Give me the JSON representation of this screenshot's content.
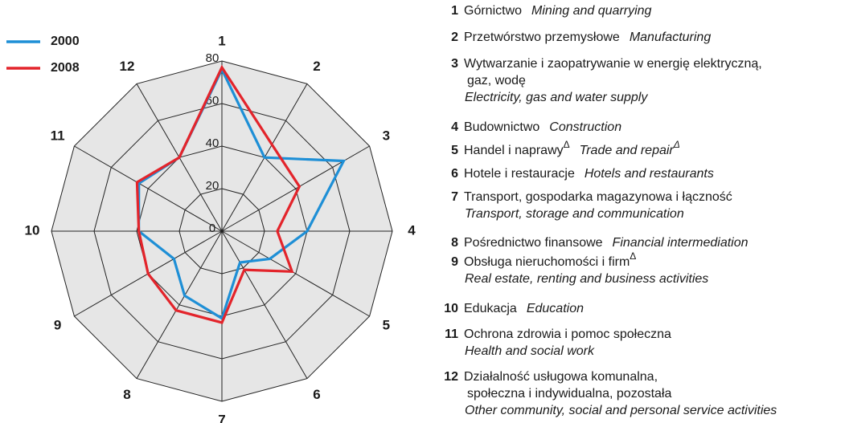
{
  "chart_data": {
    "type": "radar",
    "categories": [
      "1",
      "2",
      "3",
      "4",
      "5",
      "6",
      "7",
      "8",
      "9",
      "10",
      "11",
      "12"
    ],
    "series": [
      {
        "name": "2000",
        "color": "#1e8fd6",
        "values": [
          76,
          40,
          66,
          40,
          26,
          17,
          41,
          35,
          26,
          39,
          45,
          40
        ]
      },
      {
        "name": "2008",
        "color": "#e3242b",
        "values": [
          77,
          47,
          42,
          26,
          38,
          21,
          43,
          43,
          40,
          39,
          46,
          40
        ]
      }
    ],
    "ylim": [
      0,
      80
    ],
    "yticks": [
      0,
      20,
      40,
      60,
      80
    ],
    "grid": true,
    "legend": "upper left",
    "sectors": [
      {
        "number": "1",
        "pl": [
          "Górnictwo"
        ],
        "en": [
          "Mining and quarrying"
        ]
      },
      {
        "number": "2",
        "pl": [
          "Przetwórstwo przemysłowe"
        ],
        "en": [
          "Manufacturing"
        ]
      },
      {
        "number": "3",
        "pl": [
          "Wytwarzanie i zaopatrywanie w energię elektryczną,",
          "gaz, wodę"
        ],
        "en": [
          "Electricity, gas and water supply"
        ]
      },
      {
        "number": "4",
        "pl": [
          "Budownictwo"
        ],
        "en": [
          "Construction"
        ]
      },
      {
        "number": "5",
        "pl": [
          "Handel i naprawy"
        ],
        "pl_sup": "Δ",
        "en": [
          "Trade and repair"
        ],
        "en_sup": "Δ"
      },
      {
        "number": "6",
        "pl": [
          "Hotele i restauracje"
        ],
        "en": [
          "Hotels and restaurants"
        ]
      },
      {
        "number": "7",
        "pl": [
          "Transport, gospodarka magazynowa i łączność"
        ],
        "en": [
          "Transport, storage and communication"
        ]
      },
      {
        "number": "8",
        "pl": [
          "Pośrednictwo finansowe"
        ],
        "en": [
          "Financial intermediation"
        ]
      },
      {
        "number": "9",
        "pl": [
          "Obsługa nieruchomości i firm"
        ],
        "pl_sup": "Δ",
        "en": [
          "Real estate, renting and business activities"
        ]
      },
      {
        "number": "10",
        "pl": [
          "Edukacja"
        ],
        "en": [
          "Education"
        ]
      },
      {
        "number": "11",
        "pl": [
          "Ochrona zdrowia i pomoc społeczna"
        ],
        "en": [
          "Health and social work"
        ]
      },
      {
        "number": "12",
        "pl": [
          "Działalność usługowa komunalna,",
          "społeczna i indywidualna, pozostała"
        ],
        "en": [
          "Other community, social and personal service activities"
        ]
      }
    ]
  }
}
